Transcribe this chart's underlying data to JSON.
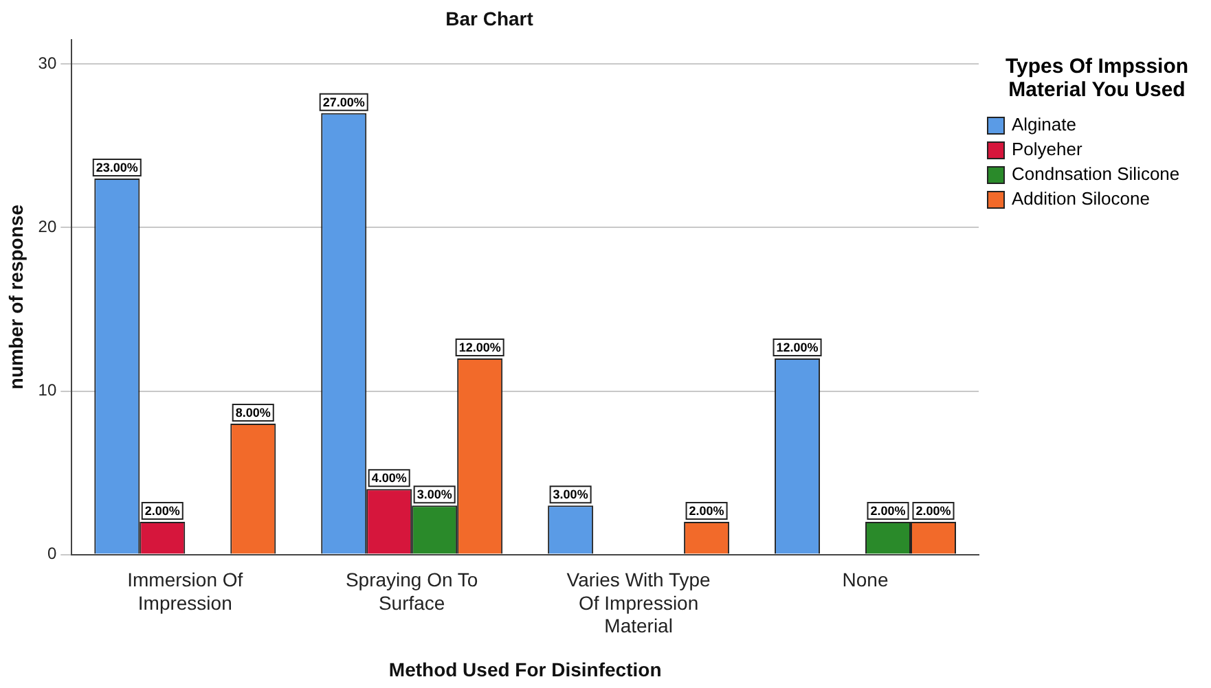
{
  "chart_data": {
    "type": "bar",
    "title": "Bar Chart",
    "xlabel": "Method Used For Disinfection",
    "ylabel": "number of response",
    "legend_title": "Types Of Impssion Material You Used",
    "categories": [
      "Immersion Of Impression",
      "Spraying On To Surface",
      "Varies With Type Of Impression Material",
      "None"
    ],
    "series": [
      {
        "name": "Alginate",
        "color": "#5a9be6",
        "values": [
          23,
          27,
          3,
          12
        ],
        "value_labels": [
          "23.00%",
          "27.00%",
          "3.00%",
          "12.00%"
        ]
      },
      {
        "name": "Polyeher",
        "color": "#d6163c",
        "values": [
          2,
          4,
          null,
          null
        ],
        "value_labels": [
          "2.00%",
          "4.00%",
          null,
          null
        ]
      },
      {
        "name": "Condnsation Silicone",
        "color": "#2a8a2a",
        "values": [
          null,
          3,
          null,
          2
        ],
        "value_labels": [
          null,
          "3.00%",
          null,
          "2.00%"
        ]
      },
      {
        "name": "Addition Silocone",
        "color": "#f26a2a",
        "values": [
          8,
          12,
          2,
          2
        ],
        "value_labels": [
          "8.00%",
          "12.00%",
          "2.00%",
          "2.00%"
        ]
      }
    ],
    "ylim": [
      0,
      31.5
    ],
    "yticks": [
      0,
      10,
      20,
      30
    ],
    "grid": "y",
    "legend": "right"
  }
}
